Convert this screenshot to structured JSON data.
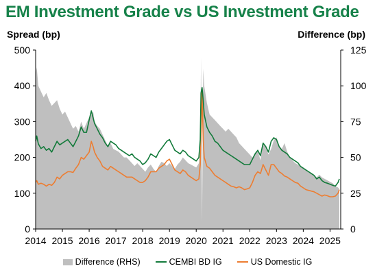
{
  "chart_data": {
    "type": "line",
    "title": "EM Investment Grade vs US Investment Grade",
    "ylabel": "Spread (bp)",
    "y2label": "Difference (bp)",
    "ylim": [
      0,
      500
    ],
    "y2lim": [
      0,
      125
    ],
    "yticks": [
      "0",
      "100",
      "200",
      "300",
      "400",
      "500"
    ],
    "y2ticks": [
      "0",
      "25",
      "50",
      "75",
      "100",
      "125"
    ],
    "xlim": [
      2014.0,
      2025.4
    ],
    "xticks": [
      "2014",
      "2015",
      "2016",
      "2017",
      "2018",
      "2019",
      "2020",
      "2021",
      "2022",
      "2023",
      "2024",
      "2025"
    ],
    "grid": false,
    "legend_position": "bottom",
    "colors": {
      "title": "#17824a",
      "difference": "#bfbfbf",
      "cembi": "#127a3a",
      "us": "#ed7d31"
    },
    "x": [
      2014.0,
      2014.04,
      2014.1,
      2014.2,
      2014.3,
      2014.4,
      2014.5,
      2014.6,
      2014.7,
      2014.8,
      2014.9,
      2015.0,
      2015.1,
      2015.2,
      2015.3,
      2015.4,
      2015.5,
      2015.6,
      2015.7,
      2015.8,
      2015.9,
      2016.0,
      2016.08,
      2016.15,
      2016.2,
      2016.3,
      2016.4,
      2016.5,
      2016.6,
      2016.7,
      2016.8,
      2016.9,
      2017.0,
      2017.1,
      2017.2,
      2017.3,
      2017.4,
      2017.5,
      2017.6,
      2017.7,
      2017.8,
      2017.9,
      2018.0,
      2018.1,
      2018.2,
      2018.3,
      2018.4,
      2018.5,
      2018.6,
      2018.7,
      2018.8,
      2018.9,
      2019.0,
      2019.1,
      2019.2,
      2019.3,
      2019.4,
      2019.5,
      2019.6,
      2019.7,
      2019.8,
      2019.9,
      2020.0,
      2020.1,
      2020.15,
      2020.18,
      2020.22,
      2020.26,
      2020.3,
      2020.4,
      2020.5,
      2020.6,
      2020.7,
      2020.8,
      2020.9,
      2021.0,
      2021.1,
      2021.2,
      2021.3,
      2021.4,
      2021.5,
      2021.6,
      2021.7,
      2021.8,
      2021.9,
      2022.0,
      2022.1,
      2022.2,
      2022.3,
      2022.4,
      2022.5,
      2022.6,
      2022.7,
      2022.8,
      2022.9,
      2023.0,
      2023.1,
      2023.2,
      2023.3,
      2023.4,
      2023.5,
      2023.6,
      2023.7,
      2023.8,
      2023.9,
      2024.0,
      2024.1,
      2024.2,
      2024.3,
      2024.4,
      2024.5,
      2024.6,
      2024.7,
      2024.8,
      2024.9,
      2025.0,
      2025.1,
      2025.2,
      2025.3,
      2025.35
    ],
    "series": [
      {
        "name": "Difference (RHS)",
        "type": "area",
        "axis": "right",
        "values": [
          108,
          113,
          100,
          96,
          92,
          95,
          90,
          86,
          88,
          90,
          84,
          80,
          82,
          78,
          74,
          70,
          72,
          68,
          75,
          70,
          74,
          78,
          80,
          82,
          75,
          72,
          70,
          66,
          62,
          58,
          60,
          56,
          55,
          54,
          52,
          50,
          50,
          48,
          46,
          44,
          46,
          44,
          42,
          40,
          43,
          45,
          42,
          40,
          44,
          47,
          46,
          44,
          46,
          44,
          42,
          45,
          47,
          50,
          48,
          46,
          45,
          44,
          43,
          46,
          55,
          120,
          5,
          112,
          100,
          88,
          80,
          78,
          76,
          74,
          72,
          70,
          68,
          70,
          68,
          66,
          64,
          60,
          58,
          56,
          54,
          52,
          50,
          53,
          55,
          48,
          60,
          58,
          52,
          56,
          62,
          64,
          58,
          56,
          60,
          54,
          50,
          48,
          46,
          45,
          44,
          42,
          41,
          40,
          39,
          38,
          36,
          38,
          36,
          35,
          34,
          33,
          32,
          30,
          29,
          28
        ]
      },
      {
        "name": "CEMBI BD IG",
        "axis": "left",
        "values": [
          245,
          260,
          238,
          225,
          230,
          220,
          225,
          215,
          230,
          245,
          235,
          240,
          245,
          250,
          240,
          230,
          245,
          260,
          285,
          270,
          270,
          305,
          330,
          310,
          295,
          280,
          265,
          255,
          240,
          230,
          245,
          240,
          235,
          225,
          220,
          215,
          210,
          205,
          210,
          200,
          195,
          190,
          180,
          185,
          195,
          210,
          205,
          200,
          215,
          225,
          235,
          245,
          250,
          235,
          220,
          215,
          210,
          220,
          215,
          205,
          200,
          195,
          190,
          200,
          250,
          380,
          395,
          360,
          320,
          285,
          270,
          260,
          245,
          240,
          230,
          220,
          215,
          210,
          205,
          200,
          195,
          190,
          185,
          180,
          180,
          180,
          195,
          210,
          220,
          205,
          240,
          230,
          215,
          245,
          255,
          250,
          230,
          220,
          215,
          210,
          200,
          195,
          190,
          185,
          175,
          170,
          165,
          160,
          155,
          150,
          140,
          145,
          135,
          130,
          128,
          125,
          122,
          120,
          130,
          140
        ]
      },
      {
        "name": "US Domestic IG",
        "axis": "left",
        "values": [
          130,
          135,
          125,
          128,
          125,
          120,
          125,
          122,
          130,
          145,
          140,
          150,
          155,
          160,
          160,
          158,
          170,
          180,
          200,
          195,
          205,
          215,
          245,
          230,
          215,
          200,
          190,
          175,
          170,
          165,
          175,
          170,
          165,
          160,
          155,
          150,
          145,
          145,
          145,
          140,
          135,
          130,
          130,
          135,
          145,
          160,
          160,
          160,
          170,
          175,
          180,
          190,
          195,
          180,
          165,
          160,
          155,
          165,
          160,
          150,
          145,
          140,
          135,
          140,
          180,
          260,
          390,
          250,
          200,
          175,
          170,
          160,
          150,
          145,
          140,
          135,
          130,
          125,
          120,
          118,
          115,
          118,
          115,
          110,
          112,
          115,
          130,
          150,
          160,
          155,
          180,
          165,
          150,
          180,
          180,
          170,
          160,
          155,
          148,
          145,
          140,
          135,
          130,
          128,
          120,
          115,
          110,
          108,
          106,
          104,
          100,
          96,
          92,
          95,
          93,
          90,
          90,
          92,
          100,
          110
        ]
      }
    ]
  },
  "legend": {
    "difference": "Difference (RHS)",
    "cembi": "CEMBI BD IG",
    "us": "US Domestic IG"
  }
}
